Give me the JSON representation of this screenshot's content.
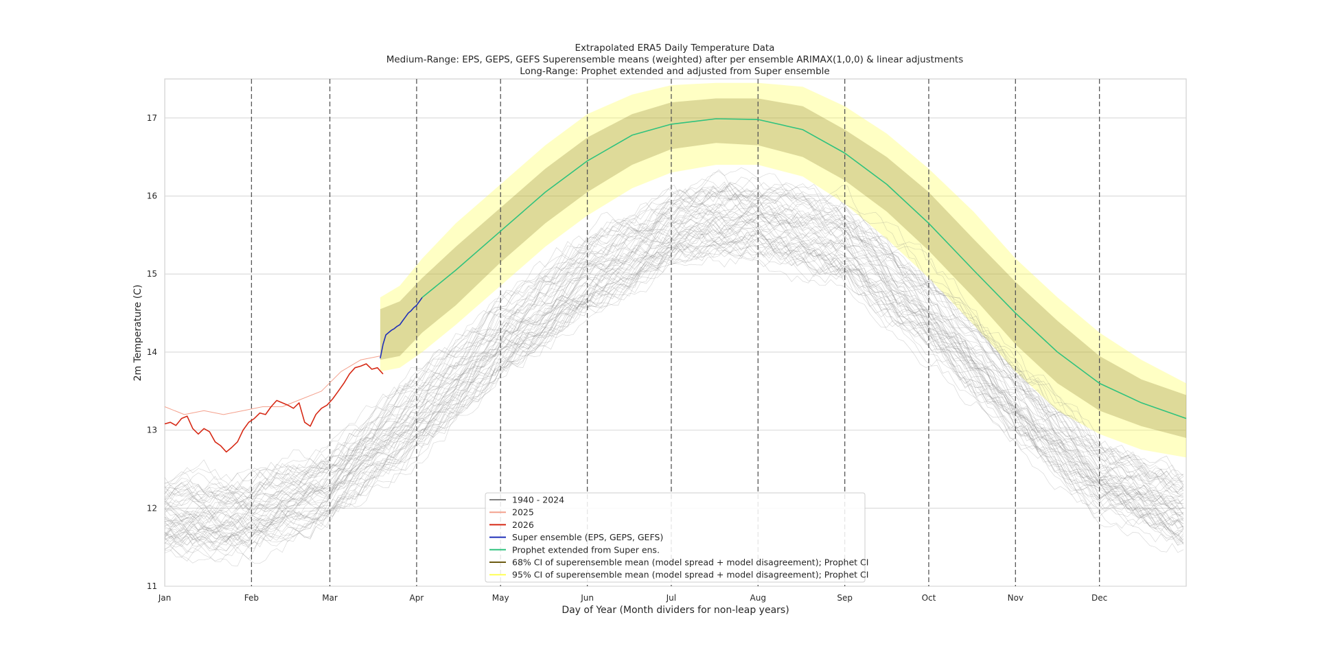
{
  "chart_data": {
    "type": "line",
    "title_lines": [
      "Extrapolated ERA5 Daily Temperature Data",
      "Medium-Range: EPS, GEPS, GEFS Superensemble means (weighted) after per ensemble ARIMAX(1,0,0) & linear adjustments",
      "Long-Range: Prophet extended and adjusted from Super ensemble"
    ],
    "xlabel": "Day of Year (Month dividers for non-leap years)",
    "ylabel": "2m Temperature (C)",
    "xlim": [
      1,
      366
    ],
    "ylim": [
      11,
      17.5
    ],
    "grid": "horizontal",
    "legend_position": "lower-center",
    "x_ticks": [
      {
        "day": 1,
        "label": "Jan"
      },
      {
        "day": 32,
        "label": "Feb"
      },
      {
        "day": 60,
        "label": "Mar"
      },
      {
        "day": 91,
        "label": "Apr"
      },
      {
        "day": 121,
        "label": "May"
      },
      {
        "day": 152,
        "label": "Jun"
      },
      {
        "day": 182,
        "label": "Jul"
      },
      {
        "day": 213,
        "label": "Aug"
      },
      {
        "day": 244,
        "label": "Sep"
      },
      {
        "day": 274,
        "label": "Oct"
      },
      {
        "day": 305,
        "label": "Nov"
      },
      {
        "day": 335,
        "label": "Dec"
      }
    ],
    "y_ticks": [
      11,
      12,
      13,
      14,
      15,
      16,
      17
    ],
    "month_dividers": [
      32,
      60,
      91,
      121,
      152,
      182,
      213,
      244,
      274,
      305,
      335
    ],
    "series": [
      {
        "name": "1940 - 2024",
        "color": "#808080",
        "note_values": "historical ensemble envelope (many thin traces)",
        "x": [
          1,
          31,
          60,
          91,
          121,
          152,
          182,
          200,
          213,
          244,
          274,
          305,
          335,
          366
        ],
        "mean": [
          11.95,
          11.95,
          12.35,
          13.25,
          14.2,
          15.0,
          15.6,
          15.75,
          15.75,
          15.45,
          14.55,
          13.45,
          12.45,
          12.0
        ],
        "spread": [
          0.45,
          0.45,
          0.45,
          0.5,
          0.5,
          0.5,
          0.45,
          0.45,
          0.45,
          0.5,
          0.5,
          0.5,
          0.45,
          0.45
        ]
      },
      {
        "name": "2025",
        "color": "#f4a08c",
        "x": [
          1,
          8,
          15,
          22,
          29,
          36,
          43,
          50,
          57,
          64,
          71,
          78
        ],
        "y": [
          13.3,
          13.2,
          13.25,
          13.2,
          13.25,
          13.3,
          13.3,
          13.4,
          13.5,
          13.75,
          13.9,
          13.95
        ]
      },
      {
        "name": "2026",
        "color": "#d62814",
        "x": [
          1,
          3,
          5,
          7,
          9,
          11,
          13,
          15,
          17,
          19,
          21,
          23,
          25,
          27,
          29,
          31,
          33,
          35,
          37,
          39,
          41,
          43,
          45,
          47,
          49,
          51,
          53,
          55,
          57,
          59,
          61,
          63,
          65,
          67,
          69,
          71,
          73,
          75,
          77,
          79
        ],
        "y": [
          13.08,
          13.1,
          13.06,
          13.15,
          13.18,
          13.02,
          12.95,
          13.02,
          12.98,
          12.85,
          12.8,
          12.72,
          12.78,
          12.85,
          13.0,
          13.1,
          13.15,
          13.22,
          13.2,
          13.3,
          13.38,
          13.35,
          13.32,
          13.28,
          13.35,
          13.1,
          13.05,
          13.2,
          13.28,
          13.32,
          13.4,
          13.5,
          13.6,
          13.72,
          13.8,
          13.82,
          13.85,
          13.78,
          13.8,
          13.72
        ]
      },
      {
        "name": "Super ensemble (EPS, GEPS, GEFS)",
        "color": "#1f2fb8",
        "x": [
          78,
          79,
          80,
          81,
          82,
          83,
          84,
          85,
          86,
          87,
          88,
          89,
          90,
          91,
          92,
          93
        ],
        "y": [
          13.92,
          14.1,
          14.22,
          14.25,
          14.28,
          14.3,
          14.33,
          14.35,
          14.4,
          14.45,
          14.5,
          14.53,
          14.57,
          14.6,
          14.65,
          14.7
        ]
      },
      {
        "name": "Prophet extended from Super ens.",
        "color": "#2ec27e",
        "x": [
          93,
          105,
          121,
          137,
          152,
          168,
          182,
          198,
          213,
          229,
          244,
          259,
          274,
          290,
          305,
          320,
          335,
          350,
          366
        ],
        "y": [
          14.7,
          15.05,
          15.55,
          16.05,
          16.45,
          16.78,
          16.92,
          16.99,
          16.98,
          16.85,
          16.55,
          16.15,
          15.65,
          15.05,
          14.5,
          14.0,
          13.6,
          13.35,
          13.15
        ]
      }
    ],
    "bands": [
      {
        "name": "68% CI of superensemble mean (model spread + model disagreement); Prophet CI",
        "color": "#8a7a2a",
        "x": [
          78,
          85,
          93,
          105,
          121,
          137,
          152,
          168,
          182,
          198,
          213,
          229,
          244,
          259,
          274,
          290,
          305,
          320,
          335,
          350,
          366
        ],
        "lower": [
          13.9,
          13.95,
          14.25,
          14.6,
          15.15,
          15.65,
          16.05,
          16.4,
          16.6,
          16.68,
          16.65,
          16.5,
          16.2,
          15.8,
          15.3,
          14.7,
          14.1,
          13.6,
          13.25,
          13.05,
          12.9
        ],
        "upper": [
          14.55,
          14.65,
          14.95,
          15.35,
          15.85,
          16.35,
          16.75,
          17.05,
          17.2,
          17.25,
          17.25,
          17.15,
          16.85,
          16.5,
          16.05,
          15.45,
          14.9,
          14.4,
          13.95,
          13.65,
          13.45
        ]
      },
      {
        "name": "95% CI of superensemble mean (model spread + model disagreement); Prophet CI",
        "color": "#ffff55",
        "x": [
          78,
          85,
          93,
          105,
          121,
          137,
          152,
          168,
          182,
          198,
          213,
          229,
          244,
          259,
          274,
          290,
          305,
          320,
          335,
          350,
          366
        ],
        "lower": [
          13.75,
          13.8,
          14.0,
          14.35,
          14.85,
          15.35,
          15.75,
          16.1,
          16.3,
          16.4,
          16.4,
          16.25,
          15.9,
          15.45,
          14.95,
          14.35,
          13.75,
          13.25,
          12.95,
          12.75,
          12.65
        ],
        "upper": [
          14.7,
          14.85,
          15.2,
          15.65,
          16.15,
          16.65,
          17.05,
          17.3,
          17.42,
          17.45,
          17.45,
          17.4,
          17.15,
          16.8,
          16.35,
          15.8,
          15.2,
          14.7,
          14.25,
          13.9,
          13.6
        ]
      }
    ],
    "legend": [
      {
        "label": "1940 - 2024",
        "color": "#808080"
      },
      {
        "label": "2025",
        "color": "#f4a08c"
      },
      {
        "label": "2026",
        "color": "#d62814"
      },
      {
        "label": "Super ensemble (EPS, GEPS, GEFS)",
        "color": "#1f2fb8"
      },
      {
        "label": "Prophet extended from Super ens.",
        "color": "#2ec27e"
      },
      {
        "label": "68% CI of superensemble mean (model spread + model disagreement); Prophet CI",
        "color": "#6b5a10"
      },
      {
        "label": "95% CI of superensemble mean (model spread + model disagreement); Prophet CI",
        "color": "#ffff55"
      }
    ]
  }
}
